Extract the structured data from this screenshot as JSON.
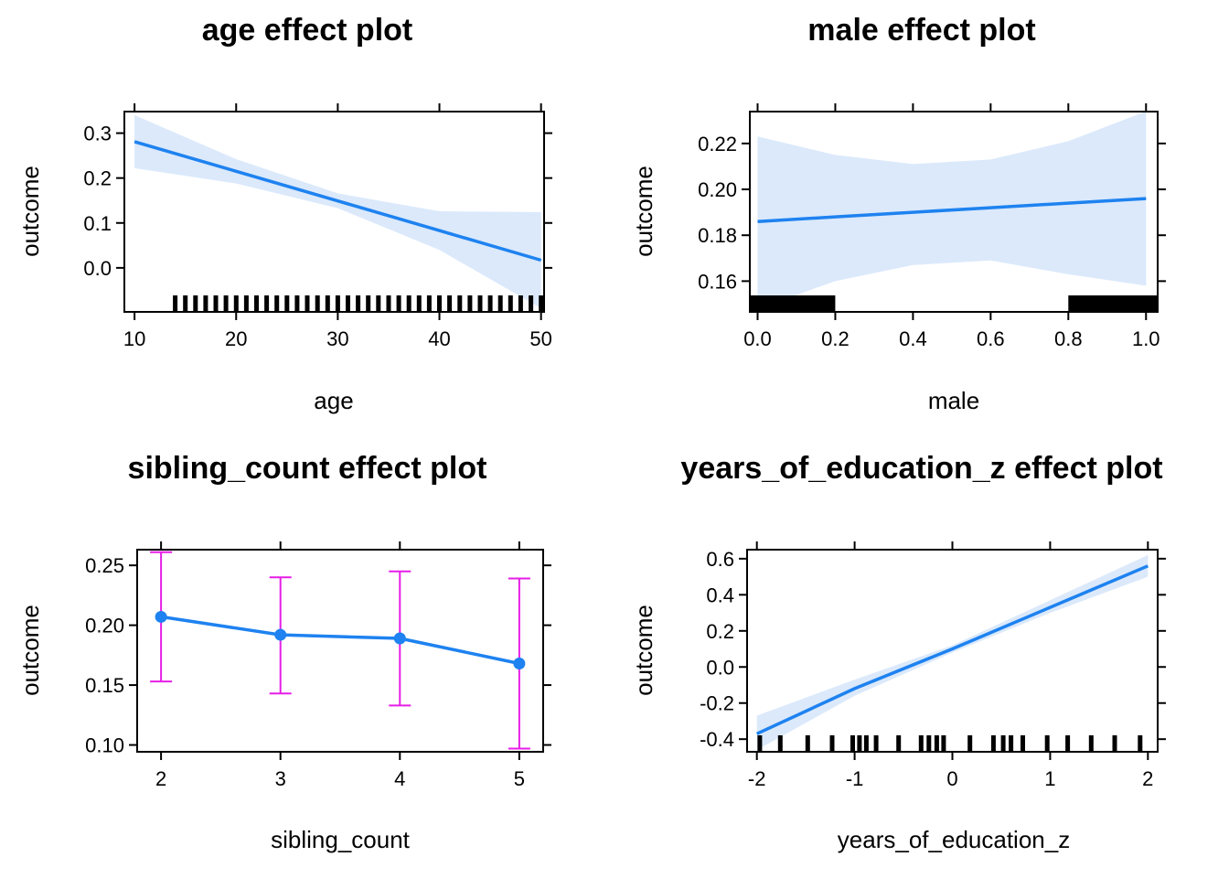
{
  "colors": {
    "line": "#1e82f0",
    "band": "#dbe9fb",
    "errorbar": "#e61ee6",
    "rug": "#000000"
  },
  "chart_data": [
    {
      "type": "line",
      "title": "age effect plot",
      "xlabel": "age",
      "ylabel": "outcome",
      "xlim": [
        9,
        50.3
      ],
      "ylim": [
        -0.098,
        0.348
      ],
      "xticks": [
        10,
        20,
        30,
        40,
        50
      ],
      "xtick_labels": [
        "10",
        "20",
        "30",
        "40",
        "50"
      ],
      "yticks": [
        0.0,
        0.1,
        0.2,
        0.3
      ],
      "ytick_labels": [
        "0.0",
        "0.1",
        "0.2",
        "0.3"
      ],
      "x": [
        10,
        20,
        30,
        40,
        50
      ],
      "y": [
        0.281,
        0.215,
        0.149,
        0.083,
        0.017
      ],
      "ci_lower": [
        0.222,
        0.188,
        0.133,
        0.04,
        -0.09
      ],
      "ci_upper": [
        0.34,
        0.242,
        0.166,
        0.126,
        0.124
      ],
      "rug": [
        14,
        15,
        16,
        17,
        18,
        19,
        20,
        21,
        22,
        23,
        24,
        25,
        26,
        27,
        28,
        29,
        30,
        31,
        32,
        33,
        34,
        35,
        36,
        37,
        38,
        39,
        40,
        41,
        42,
        43,
        44,
        45,
        46,
        47,
        48,
        49,
        50
      ],
      "rug_style": "ticks"
    },
    {
      "type": "line",
      "title": "male effect plot",
      "xlabel": "male",
      "ylabel": "outcome",
      "xlim": [
        -0.02,
        1.03
      ],
      "ylim": [
        0.1466,
        0.2339
      ],
      "xticks": [
        0.0,
        0.2,
        0.4,
        0.6,
        0.8,
        1.0
      ],
      "xtick_labels": [
        "0.0",
        "0.2",
        "0.4",
        "0.6",
        "0.8",
        "1.0"
      ],
      "yticks": [
        0.16,
        0.18,
        0.2,
        0.22
      ],
      "ytick_labels": [
        "0.16",
        "0.18",
        "0.20",
        "0.22"
      ],
      "x": [
        0,
        0.2,
        0.4,
        0.6,
        0.8,
        1.0
      ],
      "y": [
        0.186,
        0.188,
        0.19,
        0.192,
        0.194,
        0.196
      ],
      "ci_lower": [
        0.148,
        0.16,
        0.167,
        0.169,
        0.163,
        0.158
      ],
      "ci_upper": [
        0.223,
        0.215,
        0.211,
        0.213,
        0.221,
        0.234
      ],
      "rug_blocks": [
        [
          -0.02,
          0.2
        ],
        [
          0.8,
          1.03
        ]
      ],
      "rug_style": "blocks"
    },
    {
      "type": "line",
      "title": "sibling_count effect plot",
      "xlabel": "sibling_count",
      "ylabel": "outcome",
      "xlim": [
        1.8,
        5.2
      ],
      "ylim": [
        0.0943,
        0.2631
      ],
      "xticks": [
        2,
        3,
        4,
        5
      ],
      "xtick_labels": [
        "2",
        "3",
        "4",
        "5"
      ],
      "yticks": [
        0.1,
        0.15,
        0.2,
        0.25
      ],
      "ytick_labels": [
        "0.10",
        "0.15",
        "0.20",
        "0.25"
      ],
      "x": [
        2,
        3,
        4,
        5
      ],
      "y": [
        0.207,
        0.192,
        0.189,
        0.168
      ],
      "ci_lower": [
        0.153,
        0.143,
        0.133,
        0.097
      ],
      "ci_upper": [
        0.261,
        0.24,
        0.245,
        0.239
      ],
      "rug_style": "none"
    },
    {
      "type": "line",
      "title": "years_of_education_z effect plot",
      "xlabel": "years_of_education_z",
      "ylabel": "outcome",
      "xlim": [
        -2.1,
        2.1
      ],
      "ylim": [
        -0.47,
        0.65
      ],
      "xticks": [
        -2,
        -1,
        0,
        1,
        2
      ],
      "xtick_labels": [
        "-2",
        "-1",
        "0",
        "1",
        "2"
      ],
      "yticks": [
        -0.4,
        -0.2,
        0.0,
        0.2,
        0.4,
        0.6
      ],
      "ytick_labels": [
        "-0.4",
        "-0.2",
        "0.0",
        "0.2",
        "0.4",
        "0.6"
      ],
      "x": [
        -2,
        -1,
        0,
        1,
        2
      ],
      "y": [
        -0.37,
        -0.12,
        0.1,
        0.33,
        0.56
      ],
      "ci_lower": [
        -0.46,
        -0.16,
        0.08,
        0.3,
        0.5
      ],
      "ci_upper": [
        -0.27,
        -0.07,
        0.12,
        0.37,
        0.62
      ],
      "rug": [
        -1.97,
        -1.76,
        -1.48,
        -1.23,
        -1.02,
        -0.95,
        -0.88,
        -0.78,
        -0.55,
        -0.32,
        -0.24,
        -0.16,
        -0.09,
        0.18,
        0.42,
        0.52,
        0.6,
        0.72,
        0.97,
        1.18,
        1.42,
        1.66,
        1.92
      ],
      "rug_style": "ticks"
    }
  ]
}
